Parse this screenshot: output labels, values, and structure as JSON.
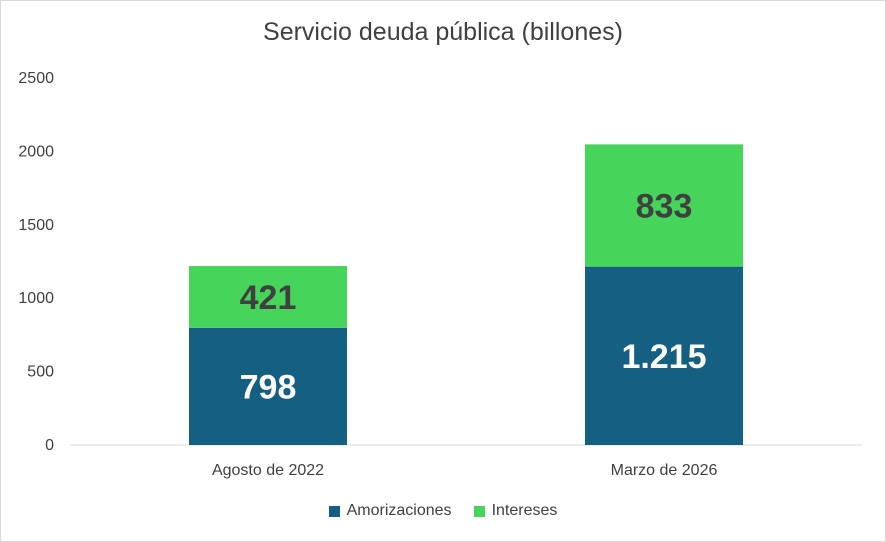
{
  "chart_data": {
    "type": "bar",
    "stacked": true,
    "title": "Servicio deuda pública (billones)",
    "categories": [
      "Agosto de 2022",
      "Marzo de 2026"
    ],
    "series": [
      {
        "name": "Amorizaciones",
        "values": [
          798,
          1215
        ],
        "labels": [
          "798",
          "1.215"
        ],
        "color": "#156082",
        "label_color": "#ffffff"
      },
      {
        "name": "Intereses",
        "values": [
          421,
          833
        ],
        "labels": [
          "421",
          "833"
        ],
        "color": "#47d45a",
        "label_color": "#404040"
      }
    ],
    "ylim": [
      0,
      2500
    ],
    "yticks": [
      0,
      500,
      1000,
      1500,
      2000,
      2500
    ],
    "grid": false,
    "legend": "bottom"
  }
}
